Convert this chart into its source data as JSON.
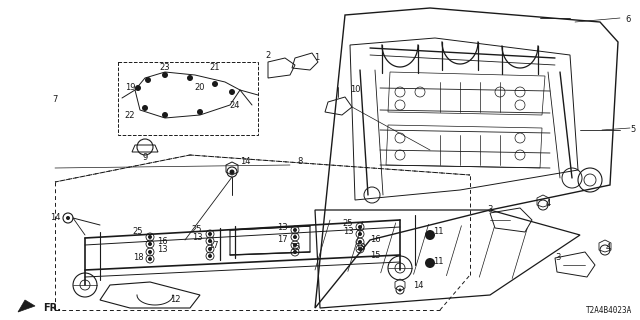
{
  "diagram_code": "T2A4B4023A",
  "bg_color": "#ffffff",
  "line_color": "#1a1a1a",
  "fig_width": 6.4,
  "fig_height": 3.2,
  "dpi": 100
}
